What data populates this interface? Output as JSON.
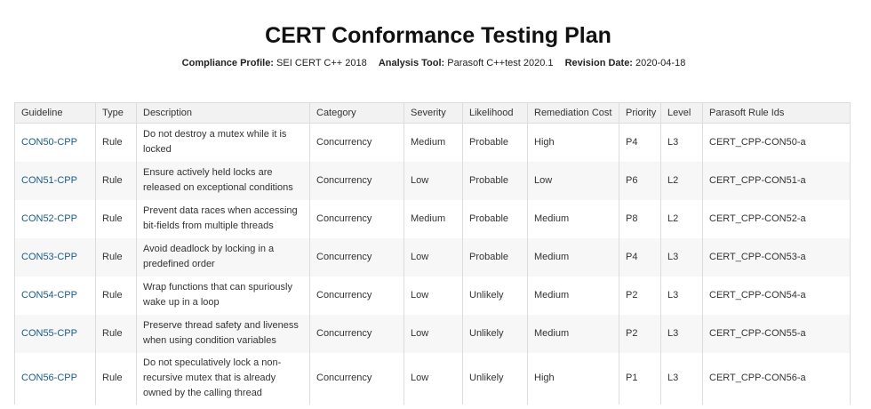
{
  "title": "CERT Conformance Testing Plan",
  "meta": {
    "profile_label": "Compliance Profile:",
    "profile_value": "SEI CERT C++ 2018",
    "tool_label": "Analysis Tool:",
    "tool_value": "Parasoft C++test 2020.1",
    "date_label": "Revision Date:",
    "date_value": "2020-04-18"
  },
  "table": {
    "headers": [
      "Guideline",
      "Type",
      "Description",
      "Category",
      "Severity",
      "Likelihood",
      "Remediation Cost",
      "Priority",
      "Level",
      "Parasoft Rule Ids"
    ],
    "rows": [
      [
        "CON50-CPP",
        "Rule",
        "Do not destroy a mutex while it is locked",
        "Concurrency",
        "Medium",
        "Probable",
        "High",
        "P4",
        "L3",
        "CERT_CPP-CON50-a"
      ],
      [
        "CON51-CPP",
        "Rule",
        "Ensure actively held locks are released on exceptional conditions",
        "Concurrency",
        "Low",
        "Probable",
        "Low",
        "P6",
        "L2",
        "CERT_CPP-CON51-a"
      ],
      [
        "CON52-CPP",
        "Rule",
        "Prevent data races when accessing bit-fields from multiple threads",
        "Concurrency",
        "Medium",
        "Probable",
        "Medium",
        "P8",
        "L2",
        "CERT_CPP-CON52-a"
      ],
      [
        "CON53-CPP",
        "Rule",
        "Avoid deadlock by locking in a predefined order",
        "Concurrency",
        "Low",
        "Probable",
        "Medium",
        "P4",
        "L3",
        "CERT_CPP-CON53-a"
      ],
      [
        "CON54-CPP",
        "Rule",
        "Wrap functions that can spuriously wake up in a loop",
        "Concurrency",
        "Low",
        "Unlikely",
        "Medium",
        "P2",
        "L3",
        "CERT_CPP-CON54-a"
      ],
      [
        "CON55-CPP",
        "Rule",
        "Preserve thread safety and liveness when using condition variables",
        "Concurrency",
        "Low",
        "Unlikely",
        "Medium",
        "P2",
        "L3",
        "CERT_CPP-CON55-a"
      ],
      [
        "CON56-CPP",
        "Rule",
        "Do not speculatively lock a non-recursive mutex that is already owned by the calling thread",
        "Concurrency",
        "Low",
        "Unlikely",
        "High",
        "P1",
        "L3",
        "CERT_CPP-CON56-a"
      ]
    ]
  }
}
